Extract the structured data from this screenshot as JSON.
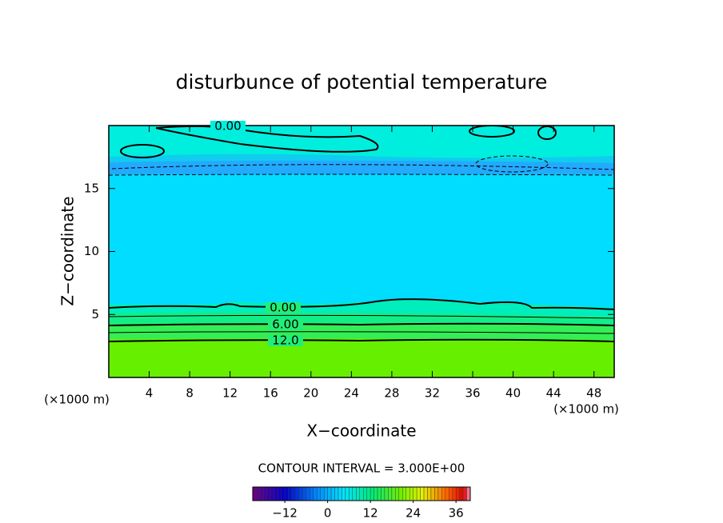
{
  "chart_data": {
    "type": "contour",
    "title": "disturbunce of potential temperature",
    "x_label": "X−coordinate",
    "y_label": "Z−coordinate",
    "x_unit": "(×1000 m)",
    "y_unit": "(×1000 m)",
    "xlim": [
      0,
      50
    ],
    "xticks": [
      4,
      8,
      12,
      16,
      20,
      24,
      28,
      32,
      36,
      40,
      44,
      48
    ],
    "ylim": [
      0,
      20
    ],
    "yticks": [
      5,
      10,
      15
    ],
    "contour_labels": {
      "values": [
        0,
        0,
        6,
        12
      ],
      "value_labels": [
        "0.00",
        "0.00",
        "6.00",
        "12.0"
      ]
    },
    "contour_interval_text": "CONTOUR INTERVAL = 3.000E+00",
    "colorbar": {
      "clim": [
        -21,
        40
      ],
      "ticks": [
        {
          "value": -12,
          "label": "−12"
        },
        0,
        12,
        24,
        36
      ]
    }
  }
}
